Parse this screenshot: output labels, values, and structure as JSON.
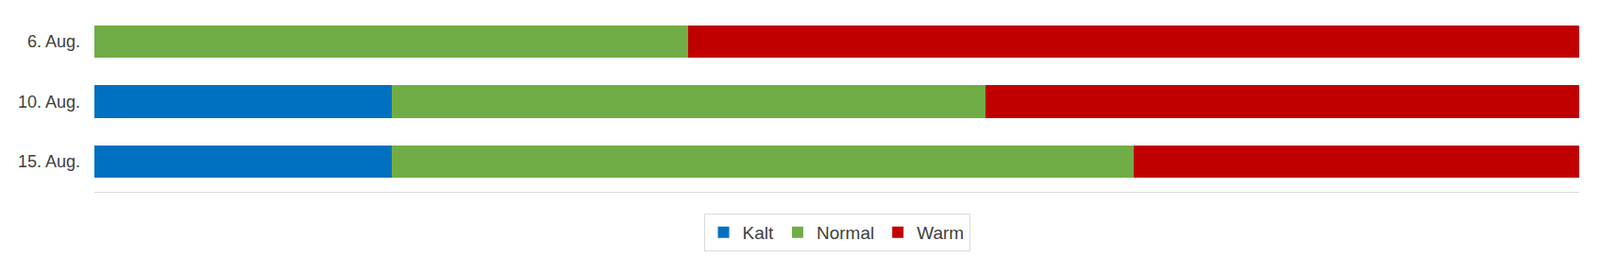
{
  "chart_data": {
    "type": "bar",
    "orientation": "horizontal",
    "stacked": true,
    "categories": [
      "6. Aug.",
      "10. Aug.",
      "15. Aug."
    ],
    "series": [
      {
        "name": "Kalt",
        "color": "#0070C0",
        "values": [
          0,
          20,
          20
        ]
      },
      {
        "name": "Normal",
        "color": "#70AD47",
        "values": [
          40,
          40,
          50
        ]
      },
      {
        "name": "Warm",
        "color": "#C00000",
        "values": [
          60,
          40,
          30
        ]
      }
    ],
    "xlim": [
      0,
      100
    ],
    "grid": false,
    "legend": "bottom",
    "tick_labels": "y"
  }
}
